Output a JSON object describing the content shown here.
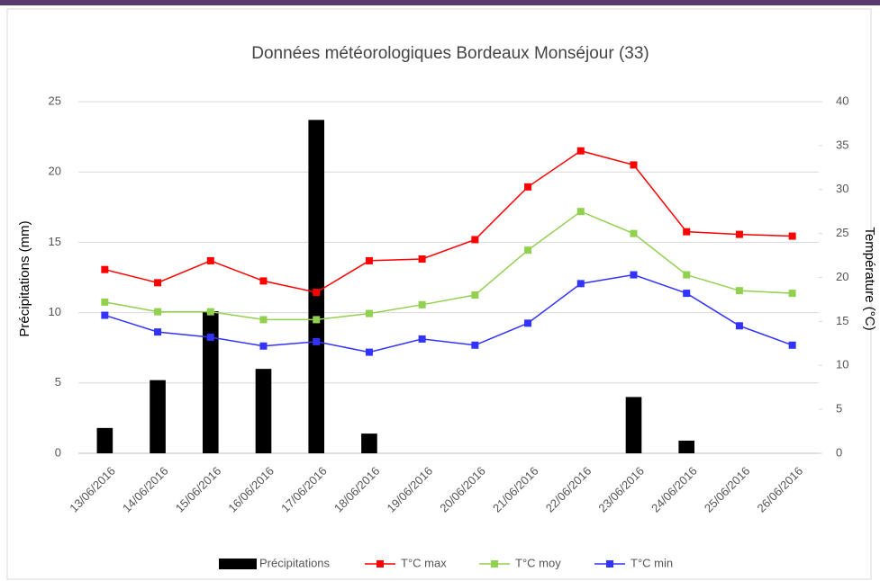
{
  "chart_data": {
    "type": "bar",
    "title": "Données météorologiques Bordeaux Monséjour (33)",
    "y_label": "Précipitations (mm)",
    "y2_label": "Température (°C)",
    "categories": [
      "13/06/2016",
      "14/06/2016",
      "15/06/2016",
      "16/06/2016",
      "17/06/2016",
      "18/06/2016",
      "19/06/2016",
      "20/06/2016",
      "21/06/2016",
      "22/06/2016",
      "23/06/2016",
      "24/06/2016",
      "25/06/2016",
      "26/06/2016"
    ],
    "series": [
      {
        "name": "Précipitations",
        "type": "bar",
        "color": "#000000",
        "values": [
          1.8,
          5.2,
          10.1,
          6.0,
          23.7,
          1.4,
          0,
          0,
          0,
          0,
          4.0,
          0.9,
          0,
          0
        ]
      },
      {
        "name": "T°C max",
        "type": "line",
        "axis": "y2",
        "color": "#ff0000",
        "values": [
          20.9,
          19.4,
          21.9,
          19.6,
          18.3,
          21.9,
          22.1,
          24.3,
          30.3,
          34.4,
          32.8,
          25.2,
          24.9,
          24.7
        ]
      },
      {
        "name": "T°C moy",
        "type": "line",
        "axis": "y2",
        "color": "#92d050",
        "values": [
          17.2,
          16.1,
          16.1,
          15.2,
          15.2,
          15.9,
          16.9,
          18.0,
          23.1,
          27.5,
          25.0,
          20.3,
          18.5,
          18.2
        ]
      },
      {
        "name": "T°C min",
        "type": "line",
        "axis": "y2",
        "color": "#3333ff",
        "values": [
          15.7,
          13.8,
          13.2,
          12.2,
          12.7,
          11.5,
          13.0,
          12.3,
          14.8,
          19.3,
          20.3,
          18.2,
          14.5,
          12.3
        ]
      }
    ],
    "ylim": [
      0,
      25
    ],
    "yticks": [
      0,
      5,
      10,
      15,
      20,
      25
    ],
    "y2lim": [
      0,
      40
    ],
    "y2ticks": [
      0,
      5,
      10,
      15,
      20,
      25,
      30,
      35,
      40
    ],
    "grid": true,
    "legend": "bottom"
  }
}
